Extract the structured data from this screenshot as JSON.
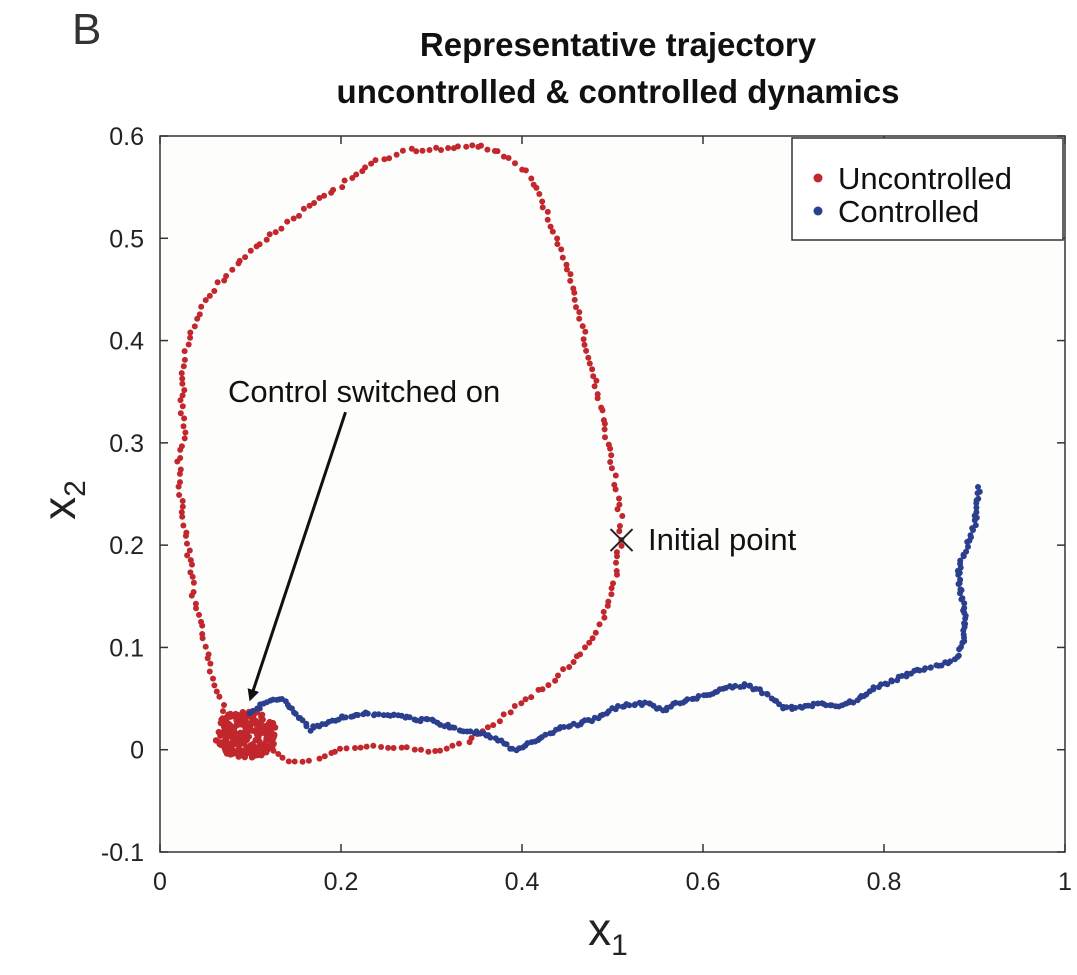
{
  "chart_data": {
    "type": "scatter",
    "panel_label": "B",
    "title": [
      "Representative trajectory",
      "uncontrolled & controlled dynamics"
    ],
    "xlabel": "x",
    "xlabel_sub": "1",
    "ylabel": "x",
    "ylabel_sub": "2",
    "xlim": [
      0,
      1
    ],
    "ylim": [
      -0.1,
      0.6
    ],
    "xticks": [
      0,
      0.2,
      0.4,
      0.6,
      0.8,
      1
    ],
    "xtick_labels": [
      "0",
      "0.2",
      "0.4",
      "0.6",
      "0.8",
      "1"
    ],
    "yticks": [
      -0.1,
      0,
      0.1,
      0.2,
      0.3,
      0.4,
      0.5,
      0.6
    ],
    "ytick_labels": [
      "-0.1",
      "0",
      "0.1",
      "0.2",
      "0.3",
      "0.4",
      "0.5",
      "0.6"
    ],
    "grid": false,
    "legend_position": "top-right",
    "series": [
      {
        "name": "Uncontrolled",
        "color": "#c1272d",
        "path": [
          [
            0.51,
            0.22
          ],
          [
            0.503,
            0.26
          ],
          [
            0.494,
            0.3
          ],
          [
            0.48,
            0.36
          ],
          [
            0.465,
            0.42
          ],
          [
            0.45,
            0.47
          ],
          [
            0.425,
            0.53
          ],
          [
            0.405,
            0.565
          ],
          [
            0.375,
            0.585
          ],
          [
            0.35,
            0.59
          ],
          [
            0.31,
            0.588
          ],
          [
            0.27,
            0.585
          ],
          [
            0.24,
            0.575
          ],
          [
            0.205,
            0.555
          ],
          [
            0.17,
            0.535
          ],
          [
            0.14,
            0.515
          ],
          [
            0.11,
            0.495
          ],
          [
            0.08,
            0.47
          ],
          [
            0.055,
            0.445
          ],
          [
            0.04,
            0.42
          ],
          [
            0.03,
            0.395
          ],
          [
            0.026,
            0.37
          ],
          [
            0.024,
            0.34
          ],
          [
            0.027,
            0.31
          ],
          [
            0.021,
            0.28
          ],
          [
            0.023,
            0.25
          ],
          [
            0.027,
            0.22
          ],
          [
            0.033,
            0.185
          ],
          [
            0.037,
            0.15
          ],
          [
            0.045,
            0.12
          ],
          [
            0.052,
            0.095
          ],
          [
            0.058,
            0.07
          ],
          [
            0.066,
            0.05
          ],
          [
            0.074,
            0.032
          ],
          [
            0.08,
            0.02
          ],
          [
            0.085,
            0.01
          ],
          [
            0.093,
            0.005
          ],
          [
            0.1,
            0.012
          ],
          [
            0.11,
            0.02
          ],
          [
            0.12,
            0.015
          ],
          [
            0.125,
            0.005
          ],
          [
            0.13,
            -0.005
          ],
          [
            0.15,
            -0.012
          ],
          [
            0.175,
            -0.01
          ],
          [
            0.2,
            0.0
          ],
          [
            0.22,
            0.003
          ],
          [
            0.25,
            0.003
          ],
          [
            0.28,
            0.0
          ],
          [
            0.31,
            -0.002
          ],
          [
            0.34,
            0.008
          ],
          [
            0.37,
            0.025
          ],
          [
            0.4,
            0.045
          ],
          [
            0.43,
            0.065
          ],
          [
            0.46,
            0.09
          ],
          [
            0.48,
            0.11
          ],
          [
            0.495,
            0.14
          ],
          [
            0.503,
            0.17
          ],
          [
            0.508,
            0.2
          ],
          [
            0.51,
            0.22
          ]
        ]
      },
      {
        "name": "Controlled",
        "color": "#2b3f8e",
        "path": [
          [
            0.1,
            0.035
          ],
          [
            0.115,
            0.045
          ],
          [
            0.135,
            0.05
          ],
          [
            0.15,
            0.035
          ],
          [
            0.165,
            0.02
          ],
          [
            0.18,
            0.025
          ],
          [
            0.2,
            0.032
          ],
          [
            0.22,
            0.035
          ],
          [
            0.25,
            0.035
          ],
          [
            0.28,
            0.03
          ],
          [
            0.3,
            0.028
          ],
          [
            0.33,
            0.02
          ],
          [
            0.36,
            0.015
          ],
          [
            0.37,
            0.012
          ],
          [
            0.38,
            0.006
          ],
          [
            0.39,
            0.0
          ],
          [
            0.4,
            0.003
          ],
          [
            0.42,
            0.012
          ],
          [
            0.44,
            0.02
          ],
          [
            0.46,
            0.025
          ],
          [
            0.48,
            0.03
          ],
          [
            0.5,
            0.04
          ],
          [
            0.52,
            0.045
          ],
          [
            0.54,
            0.045
          ],
          [
            0.555,
            0.038
          ],
          [
            0.57,
            0.045
          ],
          [
            0.59,
            0.05
          ],
          [
            0.61,
            0.055
          ],
          [
            0.63,
            0.062
          ],
          [
            0.65,
            0.063
          ],
          [
            0.67,
            0.055
          ],
          [
            0.69,
            0.04
          ],
          [
            0.71,
            0.042
          ],
          [
            0.73,
            0.045
          ],
          [
            0.75,
            0.043
          ],
          [
            0.77,
            0.048
          ],
          [
            0.79,
            0.06
          ],
          [
            0.81,
            0.068
          ],
          [
            0.83,
            0.075
          ],
          [
            0.85,
            0.08
          ],
          [
            0.87,
            0.085
          ],
          [
            0.88,
            0.09
          ],
          [
            0.885,
            0.1
          ],
          [
            0.888,
            0.11
          ],
          [
            0.89,
            0.125
          ],
          [
            0.888,
            0.14
          ],
          [
            0.885,
            0.155
          ],
          [
            0.882,
            0.17
          ],
          [
            0.885,
            0.185
          ],
          [
            0.89,
            0.195
          ],
          [
            0.895,
            0.205
          ],
          [
            0.9,
            0.22
          ],
          [
            0.903,
            0.24
          ],
          [
            0.905,
            0.26
          ]
        ]
      }
    ],
    "annotations": [
      {
        "text": "Control switched on",
        "arrow_to": [
          0.1,
          0.05
        ],
        "arrow_from": [
          0.205,
          0.33
        ]
      },
      {
        "text": "Initial point",
        "point": [
          0.51,
          0.205
        ],
        "marker": "x"
      }
    ],
    "cluster": {
      "center": [
        0.095,
        0.015
      ],
      "color": "#c1272d"
    }
  }
}
